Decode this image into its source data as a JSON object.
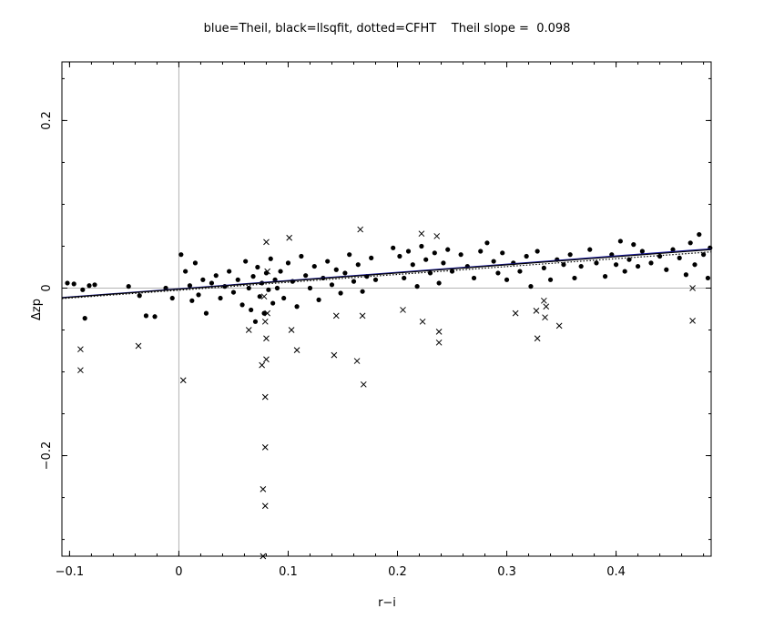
{
  "chart_data": {
    "type": "scatter",
    "title": "blue=Theil, black=llsqfit, dotted=CFHT    Theil slope =  0.098",
    "xlabel": "r−i",
    "ylabel": "Δzp",
    "xlim": [
      -0.107,
      0.487
    ],
    "ylim": [
      -0.32,
      0.27
    ],
    "xticks": [
      -0.1,
      0,
      0.1,
      0.2,
      0.3,
      0.4
    ],
    "xtick_labels": [
      "−0.1",
      "0",
      "0.1",
      "0.2",
      "0.3",
      "0.4"
    ],
    "yticks": [
      -0.2,
      0,
      0.2
    ],
    "ytick_labels": [
      "−0.2",
      "0",
      "0.2"
    ],
    "grid": false,
    "reference_lines": {
      "x": 0,
      "y": 0,
      "color": "#b4b4b4"
    },
    "fits": [
      {
        "name": "Theil",
        "style": "solid",
        "color": "#1a1a9c",
        "intercept": -0.0008,
        "slope": 0.098
      },
      {
        "name": "llsqfit",
        "style": "solid",
        "color": "#000000",
        "intercept": -0.0013,
        "slope": 0.097
      },
      {
        "name": "CFHT",
        "style": "dotted",
        "color": "#000000",
        "intercept": -0.0025,
        "slope": 0.094
      }
    ],
    "series": [
      {
        "marker": "filled-circle",
        "color": "#000000",
        "points": [
          [
            -0.102,
            0.006
          ],
          [
            -0.096,
            0.005
          ],
          [
            -0.088,
            -0.002
          ],
          [
            -0.086,
            -0.036
          ],
          [
            -0.082,
            0.003
          ],
          [
            -0.077,
            0.004
          ],
          [
            -0.046,
            0.002
          ],
          [
            -0.036,
            -0.009
          ],
          [
            -0.03,
            -0.033
          ],
          [
            -0.022,
            -0.034
          ],
          [
            -0.012,
            0.0
          ],
          [
            -0.006,
            -0.012
          ],
          [
            0.002,
            0.04
          ],
          [
            0.006,
            0.02
          ],
          [
            0.01,
            0.003
          ],
          [
            0.012,
            -0.015
          ],
          [
            0.015,
            0.03
          ],
          [
            0.018,
            -0.008
          ],
          [
            0.022,
            0.01
          ],
          [
            0.025,
            -0.03
          ],
          [
            0.03,
            0.006
          ],
          [
            0.034,
            0.015
          ],
          [
            0.038,
            -0.012
          ],
          [
            0.042,
            0.002
          ],
          [
            0.046,
            0.02
          ],
          [
            0.05,
            -0.005
          ],
          [
            0.054,
            0.01
          ],
          [
            0.058,
            -0.02
          ],
          [
            0.061,
            0.032
          ],
          [
            0.064,
            0.0
          ],
          [
            0.066,
            -0.026
          ],
          [
            0.068,
            0.014
          ],
          [
            0.07,
            -0.04
          ],
          [
            0.072,
            0.025
          ],
          [
            0.074,
            -0.01
          ],
          [
            0.076,
            0.006
          ],
          [
            0.078,
            -0.03
          ],
          [
            0.08,
            0.018
          ],
          [
            0.082,
            -0.002
          ],
          [
            0.084,
            0.035
          ],
          [
            0.086,
            -0.018
          ],
          [
            0.088,
            0.01
          ],
          [
            0.09,
            0.0
          ],
          [
            0.093,
            0.02
          ],
          [
            0.096,
            -0.012
          ],
          [
            0.1,
            0.03
          ],
          [
            0.104,
            0.008
          ],
          [
            0.108,
            -0.022
          ],
          [
            0.112,
            0.038
          ],
          [
            0.116,
            0.015
          ],
          [
            0.12,
            0.0
          ],
          [
            0.124,
            0.026
          ],
          [
            0.128,
            -0.014
          ],
          [
            0.132,
            0.012
          ],
          [
            0.136,
            0.032
          ],
          [
            0.14,
            0.004
          ],
          [
            0.144,
            0.022
          ],
          [
            0.148,
            -0.006
          ],
          [
            0.152,
            0.018
          ],
          [
            0.156,
            0.04
          ],
          [
            0.16,
            0.008
          ],
          [
            0.164,
            0.028
          ],
          [
            0.168,
            -0.004
          ],
          [
            0.172,
            0.014
          ],
          [
            0.176,
            0.036
          ],
          [
            0.18,
            0.01
          ],
          [
            0.196,
            0.048
          ],
          [
            0.202,
            0.038
          ],
          [
            0.206,
            0.012
          ],
          [
            0.21,
            0.044
          ],
          [
            0.214,
            0.028
          ],
          [
            0.218,
            0.002
          ],
          [
            0.222,
            0.05
          ],
          [
            0.226,
            0.034
          ],
          [
            0.23,
            0.018
          ],
          [
            0.234,
            0.042
          ],
          [
            0.238,
            0.006
          ],
          [
            0.242,
            0.03
          ],
          [
            0.246,
            0.046
          ],
          [
            0.25,
            0.02
          ],
          [
            0.258,
            0.04
          ],
          [
            0.264,
            0.026
          ],
          [
            0.27,
            0.012
          ],
          [
            0.276,
            0.044
          ],
          [
            0.282,
            0.054
          ],
          [
            0.288,
            0.032
          ],
          [
            0.292,
            0.018
          ],
          [
            0.296,
            0.042
          ],
          [
            0.3,
            0.01
          ],
          [
            0.306,
            0.03
          ],
          [
            0.312,
            0.02
          ],
          [
            0.318,
            0.038
          ],
          [
            0.322,
            0.002
          ],
          [
            0.328,
            0.044
          ],
          [
            0.334,
            0.024
          ],
          [
            0.34,
            0.01
          ],
          [
            0.346,
            0.034
          ],
          [
            0.352,
            0.028
          ],
          [
            0.358,
            0.04
          ],
          [
            0.362,
            0.012
          ],
          [
            0.368,
            0.026
          ],
          [
            0.376,
            0.046
          ],
          [
            0.382,
            0.03
          ],
          [
            0.39,
            0.014
          ],
          [
            0.396,
            0.04
          ],
          [
            0.4,
            0.028
          ],
          [
            0.404,
            0.056
          ],
          [
            0.408,
            0.02
          ],
          [
            0.412,
            0.034
          ],
          [
            0.416,
            0.052
          ],
          [
            0.42,
            0.026
          ],
          [
            0.424,
            0.044
          ],
          [
            0.432,
            0.03
          ],
          [
            0.44,
            0.038
          ],
          [
            0.446,
            0.022
          ],
          [
            0.452,
            0.046
          ],
          [
            0.458,
            0.036
          ],
          [
            0.464,
            0.016
          ],
          [
            0.468,
            0.054
          ],
          [
            0.472,
            0.028
          ],
          [
            0.476,
            0.064
          ],
          [
            0.48,
            0.04
          ],
          [
            0.484,
            0.012
          ],
          [
            0.486,
            0.048
          ]
        ]
      },
      {
        "marker": "x",
        "color": "#000000",
        "points": [
          [
            -0.09,
            -0.073
          ],
          [
            -0.09,
            -0.098
          ],
          [
            -0.037,
            -0.069
          ],
          [
            0.004,
            -0.11
          ],
          [
            0.064,
            -0.05
          ],
          [
            0.076,
            -0.092
          ],
          [
            0.077,
            -0.24
          ],
          [
            0.077,
            -0.32
          ],
          [
            0.078,
            -0.01
          ],
          [
            0.079,
            -0.04
          ],
          [
            0.079,
            -0.13
          ],
          [
            0.079,
            -0.19
          ],
          [
            0.079,
            -0.26
          ],
          [
            0.08,
            -0.06
          ],
          [
            0.08,
            -0.085
          ],
          [
            0.08,
            0.055
          ],
          [
            0.081,
            -0.03
          ],
          [
            0.081,
            0.02
          ],
          [
            0.101,
            0.06
          ],
          [
            0.103,
            -0.05
          ],
          [
            0.108,
            -0.074
          ],
          [
            0.142,
            -0.08
          ],
          [
            0.144,
            -0.033
          ],
          [
            0.163,
            -0.087
          ],
          [
            0.166,
            0.07
          ],
          [
            0.168,
            -0.033
          ],
          [
            0.169,
            -0.115
          ],
          [
            0.205,
            -0.026
          ],
          [
            0.222,
            0.065
          ],
          [
            0.223,
            -0.04
          ],
          [
            0.236,
            0.062
          ],
          [
            0.238,
            -0.052
          ],
          [
            0.238,
            -0.065
          ],
          [
            0.308,
            -0.03
          ],
          [
            0.327,
            -0.027
          ],
          [
            0.328,
            -0.06
          ],
          [
            0.334,
            -0.015
          ],
          [
            0.335,
            -0.035
          ],
          [
            0.336,
            -0.022
          ],
          [
            0.348,
            -0.045
          ],
          [
            0.47,
            0.0
          ],
          [
            0.47,
            -0.039
          ]
        ]
      }
    ]
  }
}
